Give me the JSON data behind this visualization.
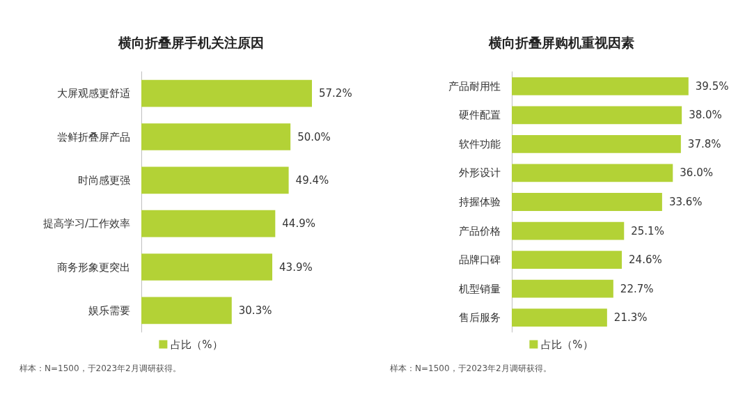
{
  "chart_data": [
    {
      "type": "bar",
      "orientation": "horizontal",
      "title": "横向折叠屏手机关注原因",
      "categories": [
        "大屏观感更舒适",
        "尝鲜折叠屏产品",
        "时尚感更强",
        "提高学习/工作效率",
        "商务形象更突出",
        "娱乐需要"
      ],
      "series": [
        {
          "name": "占比（%）",
          "color": "#b3d236",
          "values": [
            57.2,
            50.0,
            49.4,
            44.9,
            43.9,
            30.3
          ],
          "value_labels": [
            "57.2%",
            "50.0%",
            "49.4%",
            "44.9%",
            "43.9%",
            "30.3%"
          ]
        }
      ],
      "legend": "bottom",
      "grid": false,
      "tick_labels": "y",
      "annotations": [
        "样本：N=1500，于2023年2月调研获得。"
      ]
    },
    {
      "type": "bar",
      "orientation": "horizontal",
      "title": "横向折叠屏购机重视因素",
      "categories": [
        "产品耐用性",
        "硬件配置",
        "软件功能",
        "外形设计",
        "持握体验",
        "产品价格",
        "品牌口碑",
        "机型销量",
        "售后服务"
      ],
      "series": [
        {
          "name": "占比（%）",
          "color": "#b3d236",
          "values": [
            39.5,
            38.0,
            37.8,
            36.0,
            33.6,
            25.1,
            24.6,
            22.7,
            21.3
          ],
          "value_labels": [
            "39.5%",
            "38.0%",
            "37.8%",
            "36.0%",
            "33.6%",
            "25.1%",
            "24.6%",
            "22.7%",
            "21.3%"
          ]
        }
      ],
      "legend": "bottom",
      "grid": false,
      "tick_labels": "y",
      "annotations": [
        "样本：N=1500，于2023年2月调研获得。"
      ]
    }
  ]
}
